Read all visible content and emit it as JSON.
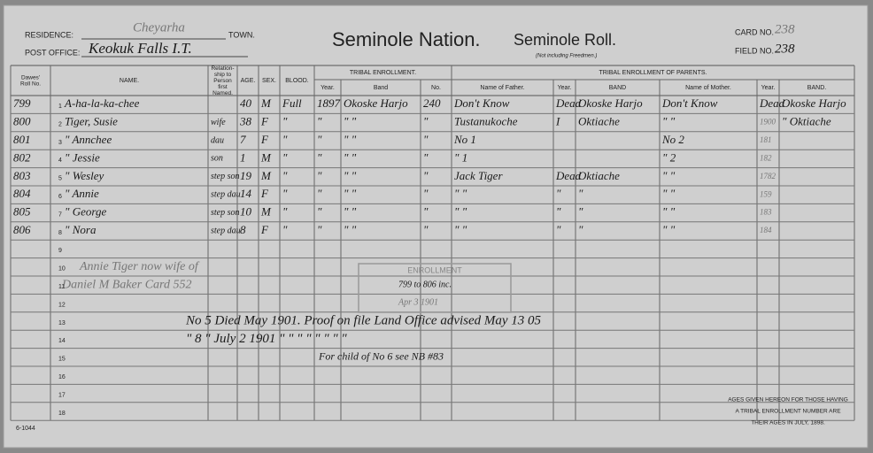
{
  "header": {
    "residence_label": "RESIDENCE:",
    "residence": "Cheyarha",
    "town_label": "TOWN.",
    "post_office_label": "POST OFFICE:",
    "post_office": "Keokuk Falls I.T.",
    "title": "Seminole Nation.",
    "subtitle": "Seminole Roll.",
    "subnote": "(Not including Freedmen.)",
    "card_label": "CARD NO.",
    "card_no": "238",
    "field_label": "FIELD NO.",
    "field_no": "238"
  },
  "table": {
    "columns": [
      "Dawes' Roll No.",
      "NAME.",
      "Relation-ship to Person first Named.",
      "AGE.",
      "SEX.",
      "BLOOD.",
      "Year.",
      "Band",
      "No.",
      "Name of Father.",
      "Year.",
      "BAND",
      "Name of Mother.",
      "Year.",
      "BAND."
    ],
    "groups": [
      "TRIBAL ENROLLMENT.",
      "TRIBAL ENROLLMENT OF PARENTS."
    ],
    "rows": [
      {
        "line": 1,
        "cells": [
          799,
          "A-ha-la-ka-chee",
          null,
          40,
          "M",
          "Full",
          1897,
          "Okoske Harjo",
          240,
          "Don't Know",
          "Dead",
          "Okoske Harjo",
          "Don't Know",
          "Dead",
          "Okoske Harjo"
        ]
      },
      {
        "line": 2,
        "cells": [
          800,
          "Tiger, Susie",
          "wife",
          38,
          "F",
          "\"",
          "\"",
          "\"  \"",
          "\"",
          "Tustanukoche",
          "I",
          "Oktiache",
          "\"  \"",
          "1900",
          "\" Oktiache"
        ]
      },
      {
        "line": 3,
        "cells": [
          801,
          "\"  Annchee",
          "dau",
          7,
          "F",
          "\"",
          "\"",
          "\"  \"",
          "\"",
          "No 1",
          null,
          null,
          "No 2",
          "181",
          null
        ]
      },
      {
        "line": 4,
        "cells": [
          802,
          "\"  Jessie",
          "son",
          1,
          "M",
          "\"",
          "\"",
          "\"  \"",
          "\"",
          "\" 1",
          null,
          null,
          "\" 2",
          "182",
          null
        ]
      },
      {
        "line": 5,
        "cells": [
          803,
          "\"  Wesley",
          "step son",
          19,
          "M",
          "\"",
          "\"",
          "\"  \"",
          "\"",
          "Jack Tiger",
          "Dead",
          "Oktiache",
          "\"  \"",
          "1782",
          null
        ]
      },
      {
        "line": 6,
        "cells": [
          804,
          "\"  Annie",
          "step dau",
          14,
          "F",
          "\"",
          "\"",
          "\"  \"",
          "\"",
          "\"  \"",
          "\"",
          "\"",
          "\"  \"",
          "159",
          null
        ]
      },
      {
        "line": 7,
        "cells": [
          805,
          "\"  George",
          "step son",
          10,
          "M",
          "\"",
          "\"",
          "\"  \"",
          "\"",
          "\"  \"",
          "\"",
          "\"",
          "\"  \"",
          "183",
          null
        ]
      },
      {
        "line": 8,
        "cells": [
          806,
          "\"  Nora",
          "step dau",
          8,
          "F",
          "\"",
          "\"",
          "\"  \"",
          "\"",
          "\"  \"",
          "\"",
          "\"",
          "\"  \"",
          "184",
          null
        ]
      },
      {
        "line": 9
      },
      {
        "line": 10
      },
      {
        "line": 11
      },
      {
        "line": 12
      },
      {
        "line": 13
      },
      {
        "line": 14
      },
      {
        "line": 15
      },
      {
        "line": 16
      },
      {
        "line": 17
      },
      {
        "line": 18
      }
    ]
  },
  "notes": [
    "Annie Tiger now wife of",
    "Daniel M Baker Card 552",
    "No 5 Died May 1901. Proof on file Land Office advised May 13 05",
    "\" 8  \"  July 2 1901  \"   \"   \"   \"   \"   \"   \"   \"",
    "For child of No 6 see NB #83"
  ],
  "stamp": {
    "title": "ENROLLMENT",
    "range": "799 to 806 inc.",
    "date": "Apr 3 1901"
  },
  "footer": {
    "ages_note": [
      "AGES GIVEN HEREON FOR THOSE HAVING",
      "A TRIBAL ENROLLMENT NUMBER ARE",
      "THEIR AGES IN JULY, 1898."
    ],
    "form_no": "6-1044"
  }
}
